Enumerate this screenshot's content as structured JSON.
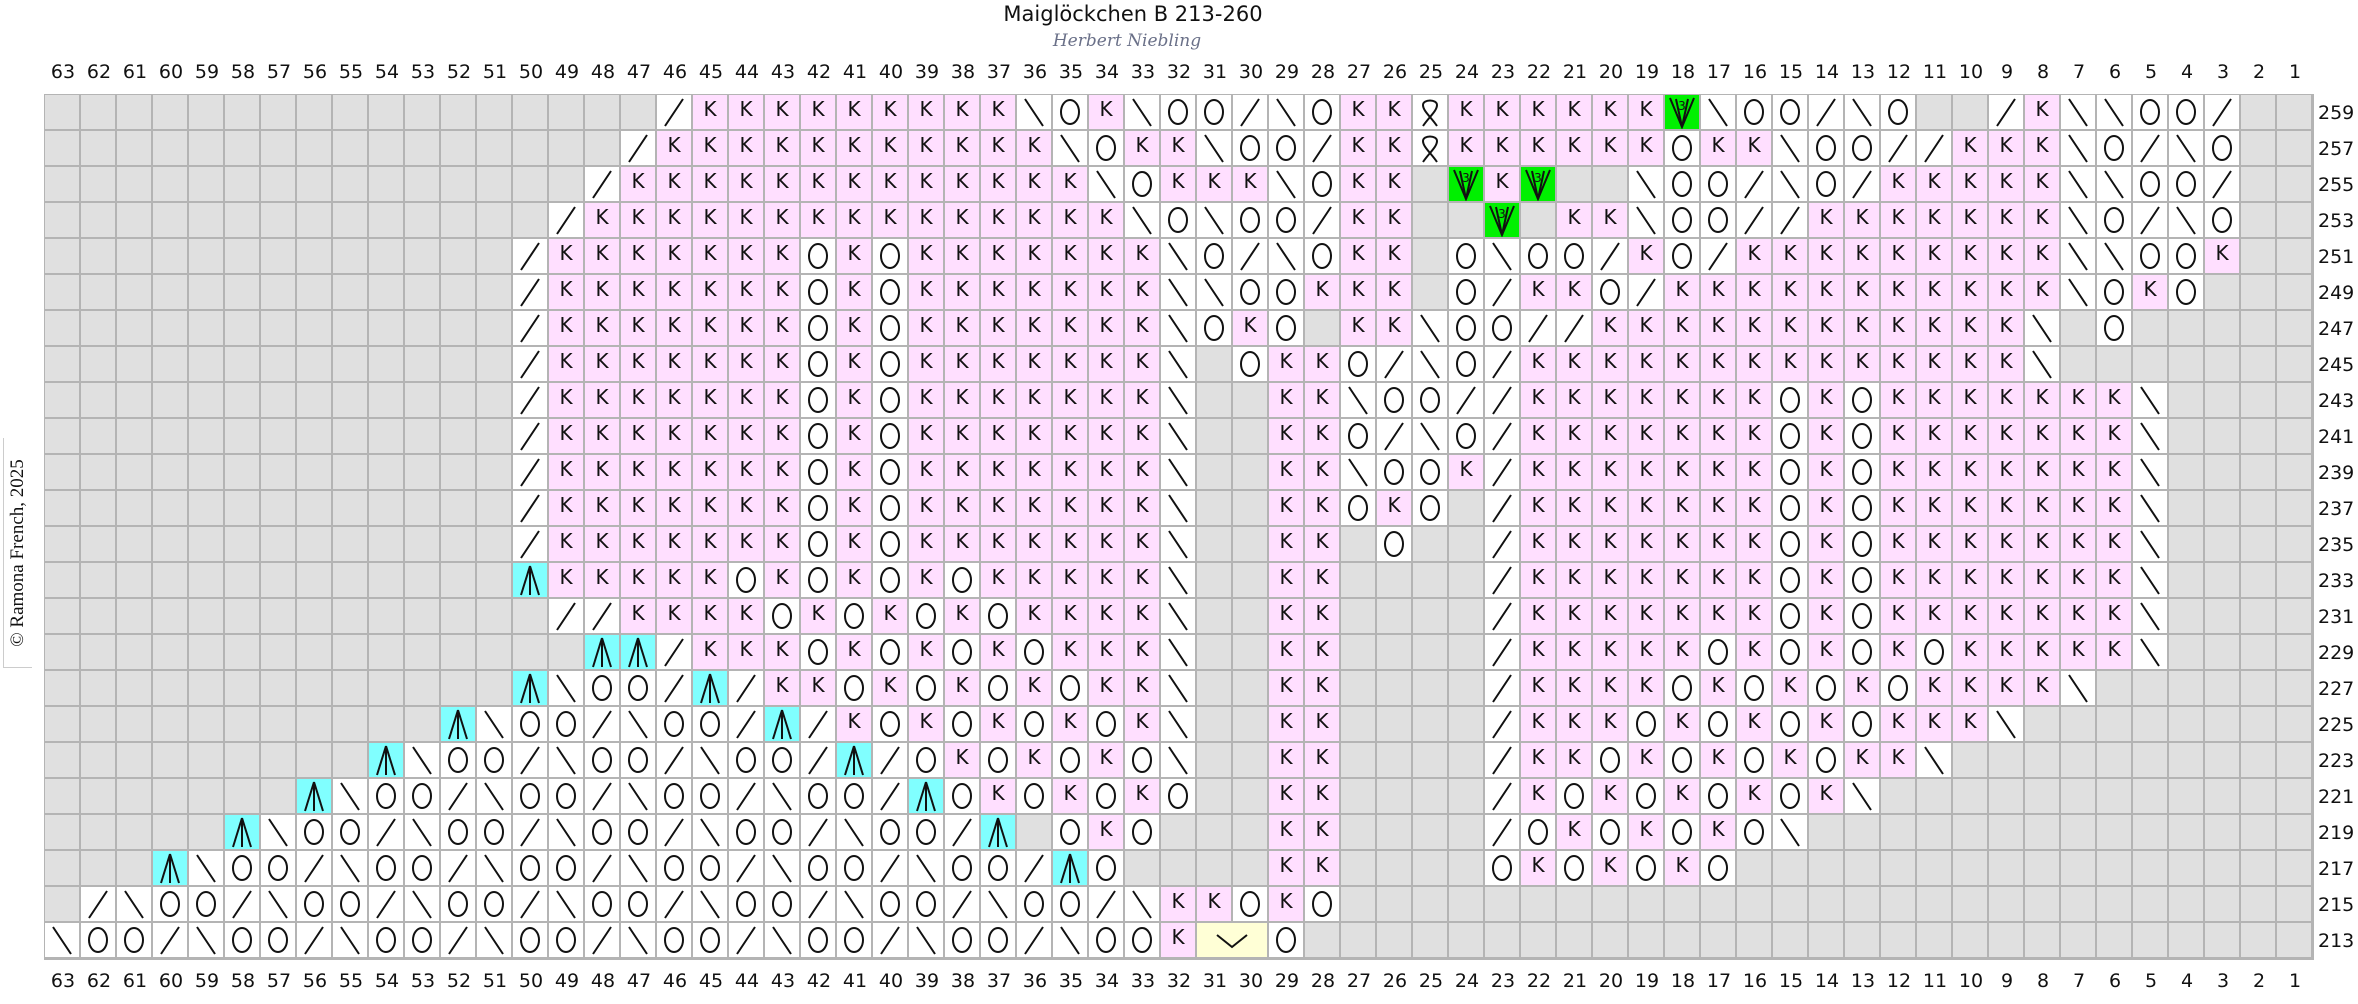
{
  "title": "Maiglöckchen B 213-260",
  "subtitle": "Herbert Niebling",
  "copyright": "© Ramona French, 2025",
  "column_numbers": [
    63,
    62,
    61,
    60,
    59,
    58,
    57,
    56,
    55,
    54,
    53,
    52,
    51,
    50,
    49,
    48,
    47,
    46,
    45,
    44,
    43,
    42,
    41,
    40,
    39,
    38,
    37,
    36,
    35,
    34,
    33,
    32,
    31,
    30,
    29,
    28,
    27,
    26,
    25,
    24,
    23,
    22,
    21,
    20,
    19,
    18,
    17,
    16,
    15,
    14,
    13,
    12,
    11,
    10,
    9,
    8,
    7,
    6,
    5,
    4,
    3,
    2,
    1
  ],
  "symbol_codes": {
    ".": "no-stitch",
    "K": "knit",
    "O": "yarn-over",
    "/": "k2tog-right-slant",
    "b": "ssk-left-slant",
    "A": "central-double-decrease",
    "V": "three-in-one-increase",
    "Q": "twisted-loop",
    "Y": "two-stitch-v"
  },
  "colors": {
    "no_stitch": "#e0e0e0",
    "knit": "#ffdfff",
    "decrease": "#80ffff",
    "increase": "#00f000",
    "special": "#ffffd6",
    "grid": "#b4b4b4"
  },
  "increase_label": "3",
  "knit_label": "K",
  "rows": [
    {
      "number": 259,
      "cells": "................./KKKKKKKKKbOKbOO/bOKKQKKKKKKVbOO/bO../KbbOO/.."
    },
    {
      "number": 257,
      "cells": "................/KKKKKKKKKKKbOKKbOO/KKQKKKKKKOKKbOO//KKKbO/bO.."
    },
    {
      "number": 255,
      "cells": ".............../KKKKKKKKKKKKKbOKKKbOKK.VKV..bOO/bO/KKKKKbbOO/.."
    },
    {
      "number": 253,
      "cells": "............../KKKKKKKKKKKKKKKbObOO/KK..V.KKbOO//KKKKKKKbO/bO.."
    },
    {
      "number": 251,
      "cells": "............./KKKKKKKOKOKKKKKKKbO/bOKK.ObOO/KO/KKKKKKKKKbbOOK.."
    },
    {
      "number": 249,
      "cells": "............./KKKKKKKOKOKKKKKKKbbOOKKK.O/KKO/KKKKKKKKKKKbOKO..."
    },
    {
      "number": 247,
      "cells": "............./KKKKKKKOKOKKKKKKKbOKO.KKbOO//KKKKKKKKKKKKb.O....."
    },
    {
      "number": 245,
      "cells": "............./KKKKKKKOKOKKKKKKKb.OKKO/bO/KKKKKKKKKKKKKKb......."
    },
    {
      "number": 243,
      "cells": "............./KKKKKKKOKOKKKKKKKb..KKbOO//KKKKKKKOKOKKKKKKKb...."
    },
    {
      "number": 241,
      "cells": "............./KKKKKKKOKOKKKKKKKb..KKO/bO/KKKKKKKOKOKKKKKKKb...."
    },
    {
      "number": 239,
      "cells": "............./KKKKKKKOKOKKKKKKKb..KKbOOK/KKKKKKKOKOKKKKKKKb...."
    },
    {
      "number": 237,
      "cells": "............./KKKKKKKOKOKKKKKKKb..KKOKO./KKKKKKKOKOKKKKKKKb...."
    },
    {
      "number": 235,
      "cells": "............./KKKKKKKOKOKKKKKKKb..KK.O../KKKKKKKOKOKKKKKKKb...."
    },
    {
      "number": 233,
      "cells": ".............AKKKKKOKOKOKOKKKKKb..KK..../KKKKKKKOKOKKKKKKKb...."
    },
    {
      "number": 231,
      "cells": "..............//KKKKOKOKOKOKKKKb..KK..../KKKKKKKOKOKKKKKKKb...."
    },
    {
      "number": 229,
      "cells": "...............AA/KKKOKOKOKOKKKb..KK..../KKKKKOKOKOKOKKKKKb...."
    },
    {
      "number": 227,
      "cells": ".............AbOO/A/KKOKOKOKOKKb..KK..../KKKKOKOKOKOKKKKb......"
    },
    {
      "number": 225,
      "cells": "...........AbOO/bOO/A/KOKOKOKOKb..KK..../KKKOKOKOKOKKKb........"
    },
    {
      "number": 223,
      "cells": ".........AbOO/bOO/bOO/A/OKOKOKOb..KK..../KKOKOKOKOKKb.........."
    },
    {
      "number": 221,
      "cells": ".......AbOO/bOO/bOO/bOO/AOKOKOKO..KK..../KOKOKOKOKb............"
    },
    {
      "number": 219,
      "cells": ".....AbOO/bOO/bOO/bOO/bOO/A.OKO...KK..../OKOKOKOb.............."
    },
    {
      "number": 217,
      "cells": "...AbOO/bOO/bOO/bOO/bOO/bOO/AO....KK....OKOKOKO................"
    },
    {
      "number": 215,
      "cells": "./bOO/bOO/bOO/bOO/bOO/bOO/bOO/bKKOKO..........................."
    },
    {
      "number": 213,
      "cells": "bOO/bOO/bOO/bOO/bOO/bOO/bOO/bOOKYYO............................"
    }
  ]
}
